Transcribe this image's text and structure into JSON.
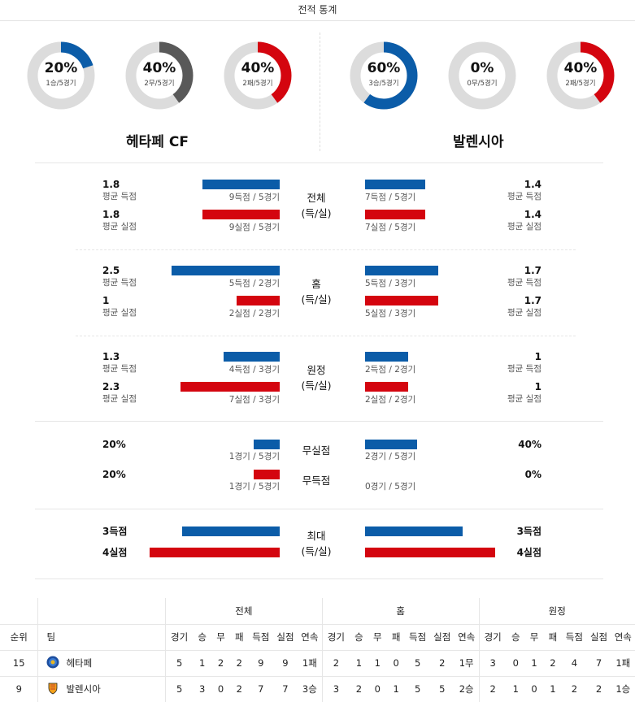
{
  "header": {
    "title": "전적 통계"
  },
  "colors": {
    "win": "#0b5ca8",
    "draw": "#595959",
    "loss": "#d4050f",
    "track": "#dcdcdc"
  },
  "rings": [
    {
      "pct": "20%",
      "sub": "1승/5경기",
      "value": 0.2,
      "color": "#0b5ca8"
    },
    {
      "pct": "40%",
      "sub": "2무/5경기",
      "value": 0.4,
      "color": "#595959"
    },
    {
      "pct": "40%",
      "sub": "2패/5경기",
      "value": 0.4,
      "color": "#d4050f"
    },
    {
      "pct": "60%",
      "sub": "3승/5경기",
      "value": 0.6,
      "color": "#0b5ca8"
    },
    {
      "pct": "0%",
      "sub": "0무/5경기",
      "value": 0.0,
      "color": "#595959"
    },
    {
      "pct": "40%",
      "sub": "2패/5경기",
      "value": 0.4,
      "color": "#d4050f"
    }
  ],
  "teams": {
    "home": "헤타페 CF",
    "away": "발렌시아"
  },
  "sections": [
    {
      "label": "전체\n(득/실)",
      "home": [
        {
          "value": "1.8",
          "caption": "평균 득점",
          "note": "9득점 / 5경기",
          "bar": 1.8
        },
        {
          "value": "1.8",
          "caption": "평균 실점",
          "note": "9실점 / 5경기",
          "bar": 1.8
        }
      ],
      "away": [
        {
          "value": "1.4",
          "caption": "평균 득점",
          "note": "7득점 / 5경기",
          "bar": 1.4
        },
        {
          "value": "1.4",
          "caption": "평균 실점",
          "note": "7실점 / 5경기",
          "bar": 1.4
        }
      ]
    },
    {
      "label": "홈\n(득/실)",
      "home": [
        {
          "value": "2.5",
          "caption": "평균 득점",
          "note": "5득점 / 2경기",
          "bar": 2.5
        },
        {
          "value": "1",
          "caption": "평균 실점",
          "note": "2실점 / 2경기",
          "bar": 1.0
        }
      ],
      "away": [
        {
          "value": "1.7",
          "caption": "평균 득점",
          "note": "5득점 / 3경기",
          "bar": 1.7
        },
        {
          "value": "1.7",
          "caption": "평균 실점",
          "note": "5실점 / 3경기",
          "bar": 1.7
        }
      ]
    },
    {
      "label": "원정\n(득/실)",
      "home": [
        {
          "value": "1.3",
          "caption": "평균 득점",
          "note": "4득점 / 3경기",
          "bar": 1.3
        },
        {
          "value": "2.3",
          "caption": "평균 실점",
          "note": "7실점 / 3경기",
          "bar": 2.3
        }
      ],
      "away": [
        {
          "value": "1",
          "caption": "평균 득점",
          "note": "2득점 / 2경기",
          "bar": 1.0
        },
        {
          "value": "1",
          "caption": "평균 실점",
          "note": "2실점 / 2경기",
          "bar": 1.0
        }
      ]
    }
  ],
  "clean": {
    "labels": [
      "무실점",
      "무득점"
    ],
    "home": [
      {
        "value": "20%",
        "note": "1경기 / 5경기",
        "bar": 0.2
      },
      {
        "value": "20%",
        "note": "1경기 / 5경기",
        "bar": 0.2
      }
    ],
    "away": [
      {
        "value": "40%",
        "note": "2경기 / 5경기",
        "bar": 0.4
      },
      {
        "value": "0%",
        "note": "0경기 / 5경기",
        "bar": 0.0
      }
    ]
  },
  "max": {
    "label": "최대\n(득/실)",
    "home": [
      {
        "value": "3득점",
        "bar": 3
      },
      {
        "value": "4실점",
        "bar": 4
      }
    ],
    "away": [
      {
        "value": "3득점",
        "bar": 3
      },
      {
        "value": "4실점",
        "bar": 4
      }
    ]
  },
  "table": {
    "groups": [
      "전체",
      "홈",
      "원정"
    ],
    "rank_header": "순위",
    "team_header": "팀",
    "columns": [
      "경기",
      "승",
      "무",
      "패",
      "득점",
      "실점",
      "연속"
    ],
    "rows": [
      {
        "rank": "15",
        "team": "헤타페",
        "crest": "getafe-crest-icon",
        "all": [
          "5",
          "1",
          "2",
          "2",
          "9",
          "9",
          "1패"
        ],
        "home": [
          "2",
          "1",
          "1",
          "0",
          "5",
          "2",
          "1무"
        ],
        "away": [
          "3",
          "0",
          "1",
          "2",
          "4",
          "7",
          "1패"
        ]
      },
      {
        "rank": "9",
        "team": "발렌시아",
        "crest": "valencia-crest-icon",
        "all": [
          "5",
          "3",
          "0",
          "2",
          "7",
          "7",
          "3승"
        ],
        "home": [
          "3",
          "2",
          "0",
          "1",
          "5",
          "5",
          "2승"
        ],
        "away": [
          "2",
          "1",
          "0",
          "1",
          "2",
          "2",
          "1승"
        ]
      }
    ]
  }
}
